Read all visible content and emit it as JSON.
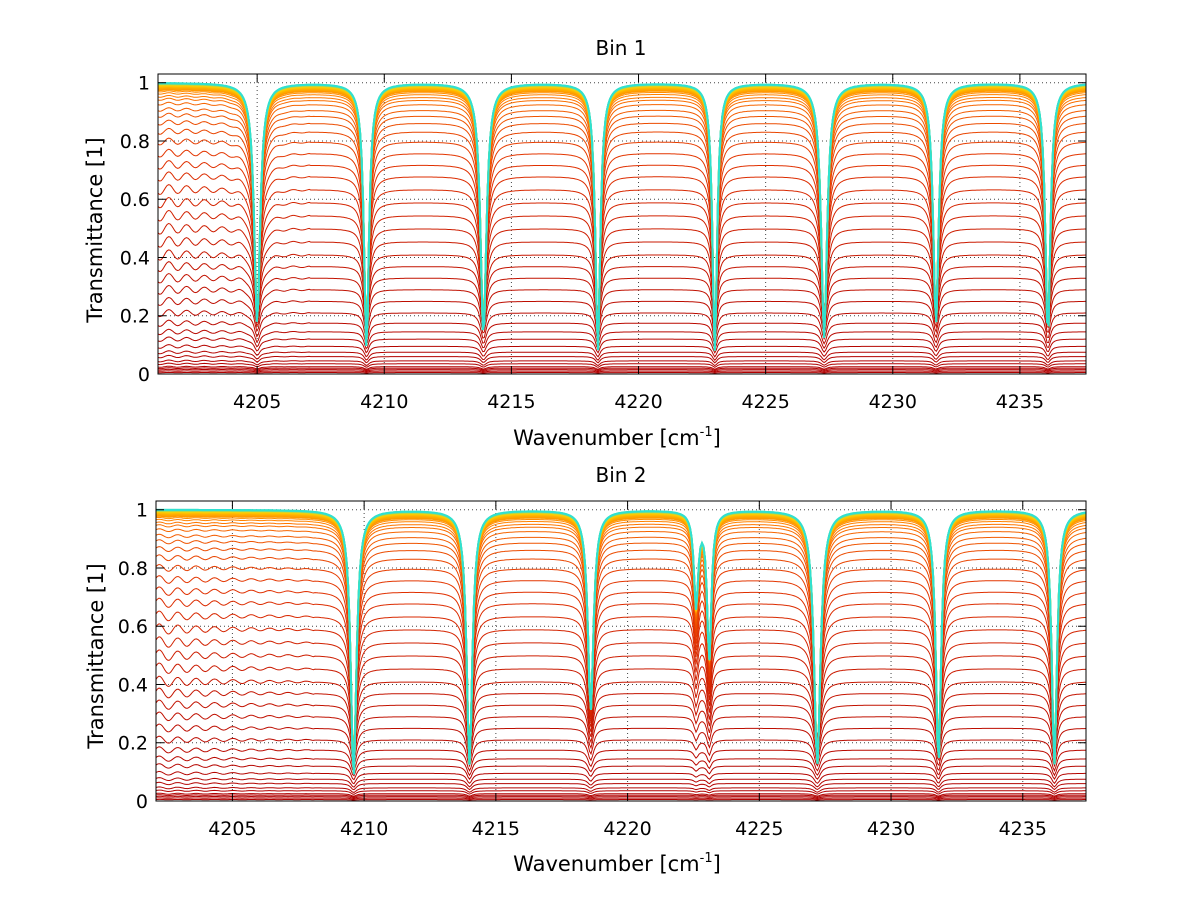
{
  "chart_data": [
    {
      "type": "line",
      "title": "Bin 1",
      "xlabel": "Wavenumber [cm",
      "xlabel_sup": "-1",
      "xlabel_close": "]",
      "ylabel": "Transmittance [1]",
      "xlim": [
        4201.1,
        4237.6
      ],
      "ylim": [
        0,
        1.03
      ],
      "xticks": [
        4205,
        4210,
        4215,
        4220,
        4225,
        4230,
        4235
      ],
      "xtick_labels": [
        "4205",
        "4210",
        "4215",
        "4220",
        "4225",
        "4230",
        "4235"
      ],
      "yticks": [
        0,
        0.2,
        0.4,
        0.6,
        0.8,
        1
      ],
      "ytick_labels": [
        "0",
        "0.2",
        "0.4",
        "0.6",
        "0.8",
        "1"
      ],
      "grid": "dotted",
      "series_count": 48,
      "baseline_levels": [
        0.005,
        0.01,
        0.015,
        0.02,
        0.025,
        0.035,
        0.045,
        0.06,
        0.075,
        0.095,
        0.12,
        0.145,
        0.175,
        0.21,
        0.25,
        0.29,
        0.33,
        0.37,
        0.41,
        0.455,
        0.5,
        0.545,
        0.59,
        0.635,
        0.68,
        0.72,
        0.76,
        0.8,
        0.835,
        0.865,
        0.89,
        0.91,
        0.93,
        0.945,
        0.955,
        0.965,
        0.972,
        0.978,
        0.983,
        0.987,
        0.99,
        0.993,
        0.995,
        0.997,
        0.998,
        0.999,
        1.0,
        1.0
      ],
      "absorption_lines": [
        {
          "x": 4205.0,
          "depth": 0.9,
          "width": 0.14
        },
        {
          "x": 4209.3,
          "depth": 1.0,
          "width": 0.12
        },
        {
          "x": 4213.9,
          "depth": 0.95,
          "width": 0.14
        },
        {
          "x": 4218.4,
          "depth": 1.0,
          "width": 0.12
        },
        {
          "x": 4223.0,
          "depth": 1.0,
          "width": 0.11
        },
        {
          "x": 4227.3,
          "depth": 0.95,
          "width": 0.14
        },
        {
          "x": 4231.7,
          "depth": 0.9,
          "width": 0.13
        },
        {
          "x": 4236.1,
          "depth": 0.95,
          "width": 0.12
        }
      ],
      "colors": [
        "#b00000",
        "#e03000",
        "#ff7a00",
        "#ffd000",
        "#30e0d0"
      ]
    },
    {
      "type": "line",
      "title": "Bin 2",
      "xlabel": "Wavenumber [cm",
      "xlabel_sup": "-1",
      "xlabel_close": "]",
      "ylabel": "Transmittance [1]",
      "xlim": [
        4202.1,
        4237.4
      ],
      "ylim": [
        0,
        1.03
      ],
      "xticks": [
        4205,
        4210,
        4215,
        4220,
        4225,
        4230,
        4235
      ],
      "xtick_labels": [
        "4205",
        "4210",
        "4215",
        "4220",
        "4225",
        "4230",
        "4235"
      ],
      "yticks": [
        0,
        0.2,
        0.4,
        0.6,
        0.8,
        1
      ],
      "ytick_labels": [
        "0",
        "0.2",
        "0.4",
        "0.6",
        "0.8",
        "1"
      ],
      "grid": "dotted",
      "series_count": 48,
      "baseline_levels": [
        0.005,
        0.01,
        0.015,
        0.02,
        0.025,
        0.035,
        0.045,
        0.06,
        0.075,
        0.095,
        0.12,
        0.145,
        0.175,
        0.21,
        0.25,
        0.29,
        0.33,
        0.37,
        0.41,
        0.455,
        0.5,
        0.545,
        0.59,
        0.635,
        0.68,
        0.72,
        0.76,
        0.8,
        0.835,
        0.865,
        0.89,
        0.91,
        0.93,
        0.945,
        0.955,
        0.965,
        0.972,
        0.978,
        0.983,
        0.987,
        0.99,
        0.993,
        0.995,
        0.997,
        0.998,
        0.999,
        1.0,
        1.0
      ],
      "absorption_lines": [
        {
          "x": 4209.6,
          "depth": 1.0,
          "width": 0.13
        },
        {
          "x": 4214.0,
          "depth": 0.95,
          "width": 0.13
        },
        {
          "x": 4218.6,
          "depth": 0.75,
          "width": 0.13
        },
        {
          "x": 4222.6,
          "depth": 0.35,
          "width": 0.1
        },
        {
          "x": 4223.1,
          "depth": 0.55,
          "width": 0.1
        },
        {
          "x": 4227.2,
          "depth": 0.95,
          "width": 0.15
        },
        {
          "x": 4231.8,
          "depth": 0.95,
          "width": 0.12
        },
        {
          "x": 4236.2,
          "depth": 0.95,
          "width": 0.12
        }
      ],
      "colors": [
        "#b00000",
        "#e03000",
        "#ff7a00",
        "#ffd000",
        "#30e0d0"
      ]
    }
  ]
}
